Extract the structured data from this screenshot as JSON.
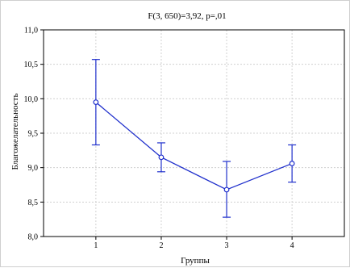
{
  "chart_data": {
    "type": "line",
    "title": "F(3, 650)=3,92, p=,01",
    "xlabel": "Группы",
    "ylabel": "Благожелательность",
    "categories": [
      "1",
      "2",
      "3",
      "4"
    ],
    "ylim": [
      8.0,
      11.0
    ],
    "yticks": [
      "8,0",
      "8,5",
      "9,0",
      "9,5",
      "10,0",
      "10,5",
      "11,0"
    ],
    "grid": true,
    "series": [
      {
        "values": [
          9.95,
          9.15,
          8.68,
          9.06
        ],
        "lower": [
          9.33,
          8.94,
          8.28,
          8.79
        ],
        "upper": [
          10.57,
          9.36,
          9.09,
          9.33
        ]
      }
    ],
    "colors": {
      "line": "#1f2fcc",
      "marker_fill": "#ffffff",
      "grid": "#d0d0d0"
    }
  }
}
